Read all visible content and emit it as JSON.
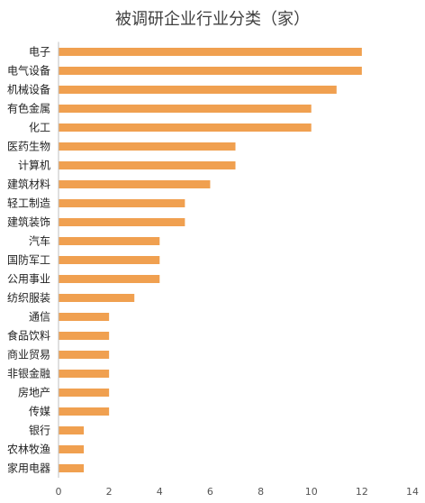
{
  "chart_data": {
    "type": "bar",
    "orientation": "horizontal",
    "title": "被调研企业行业分类（家）",
    "xlabel": "",
    "ylabel": "",
    "xlim": [
      0,
      14
    ],
    "x_ticks": [
      0,
      2,
      4,
      6,
      8,
      10,
      12,
      14
    ],
    "grid": false,
    "legend": "none",
    "bar_color": "#F0A050",
    "categories": [
      "电子",
      "电气设备",
      "机械设备",
      "有色金属",
      "化工",
      "医药生物",
      "计算机",
      "建筑材料",
      "轻工制造",
      "建筑装饰",
      "汽车",
      "国防军工",
      "公用事业",
      "纺织服装",
      "通信",
      "食品饮料",
      "商业贸易",
      "非银金融",
      "房地产",
      "传媒",
      "银行",
      "农林牧渔",
      "家用电器"
    ],
    "values": [
      12,
      12,
      11,
      10,
      10,
      7,
      7,
      6,
      5,
      5,
      4,
      4,
      4,
      3,
      2,
      2,
      2,
      2,
      2,
      2,
      1,
      1,
      1
    ]
  }
}
